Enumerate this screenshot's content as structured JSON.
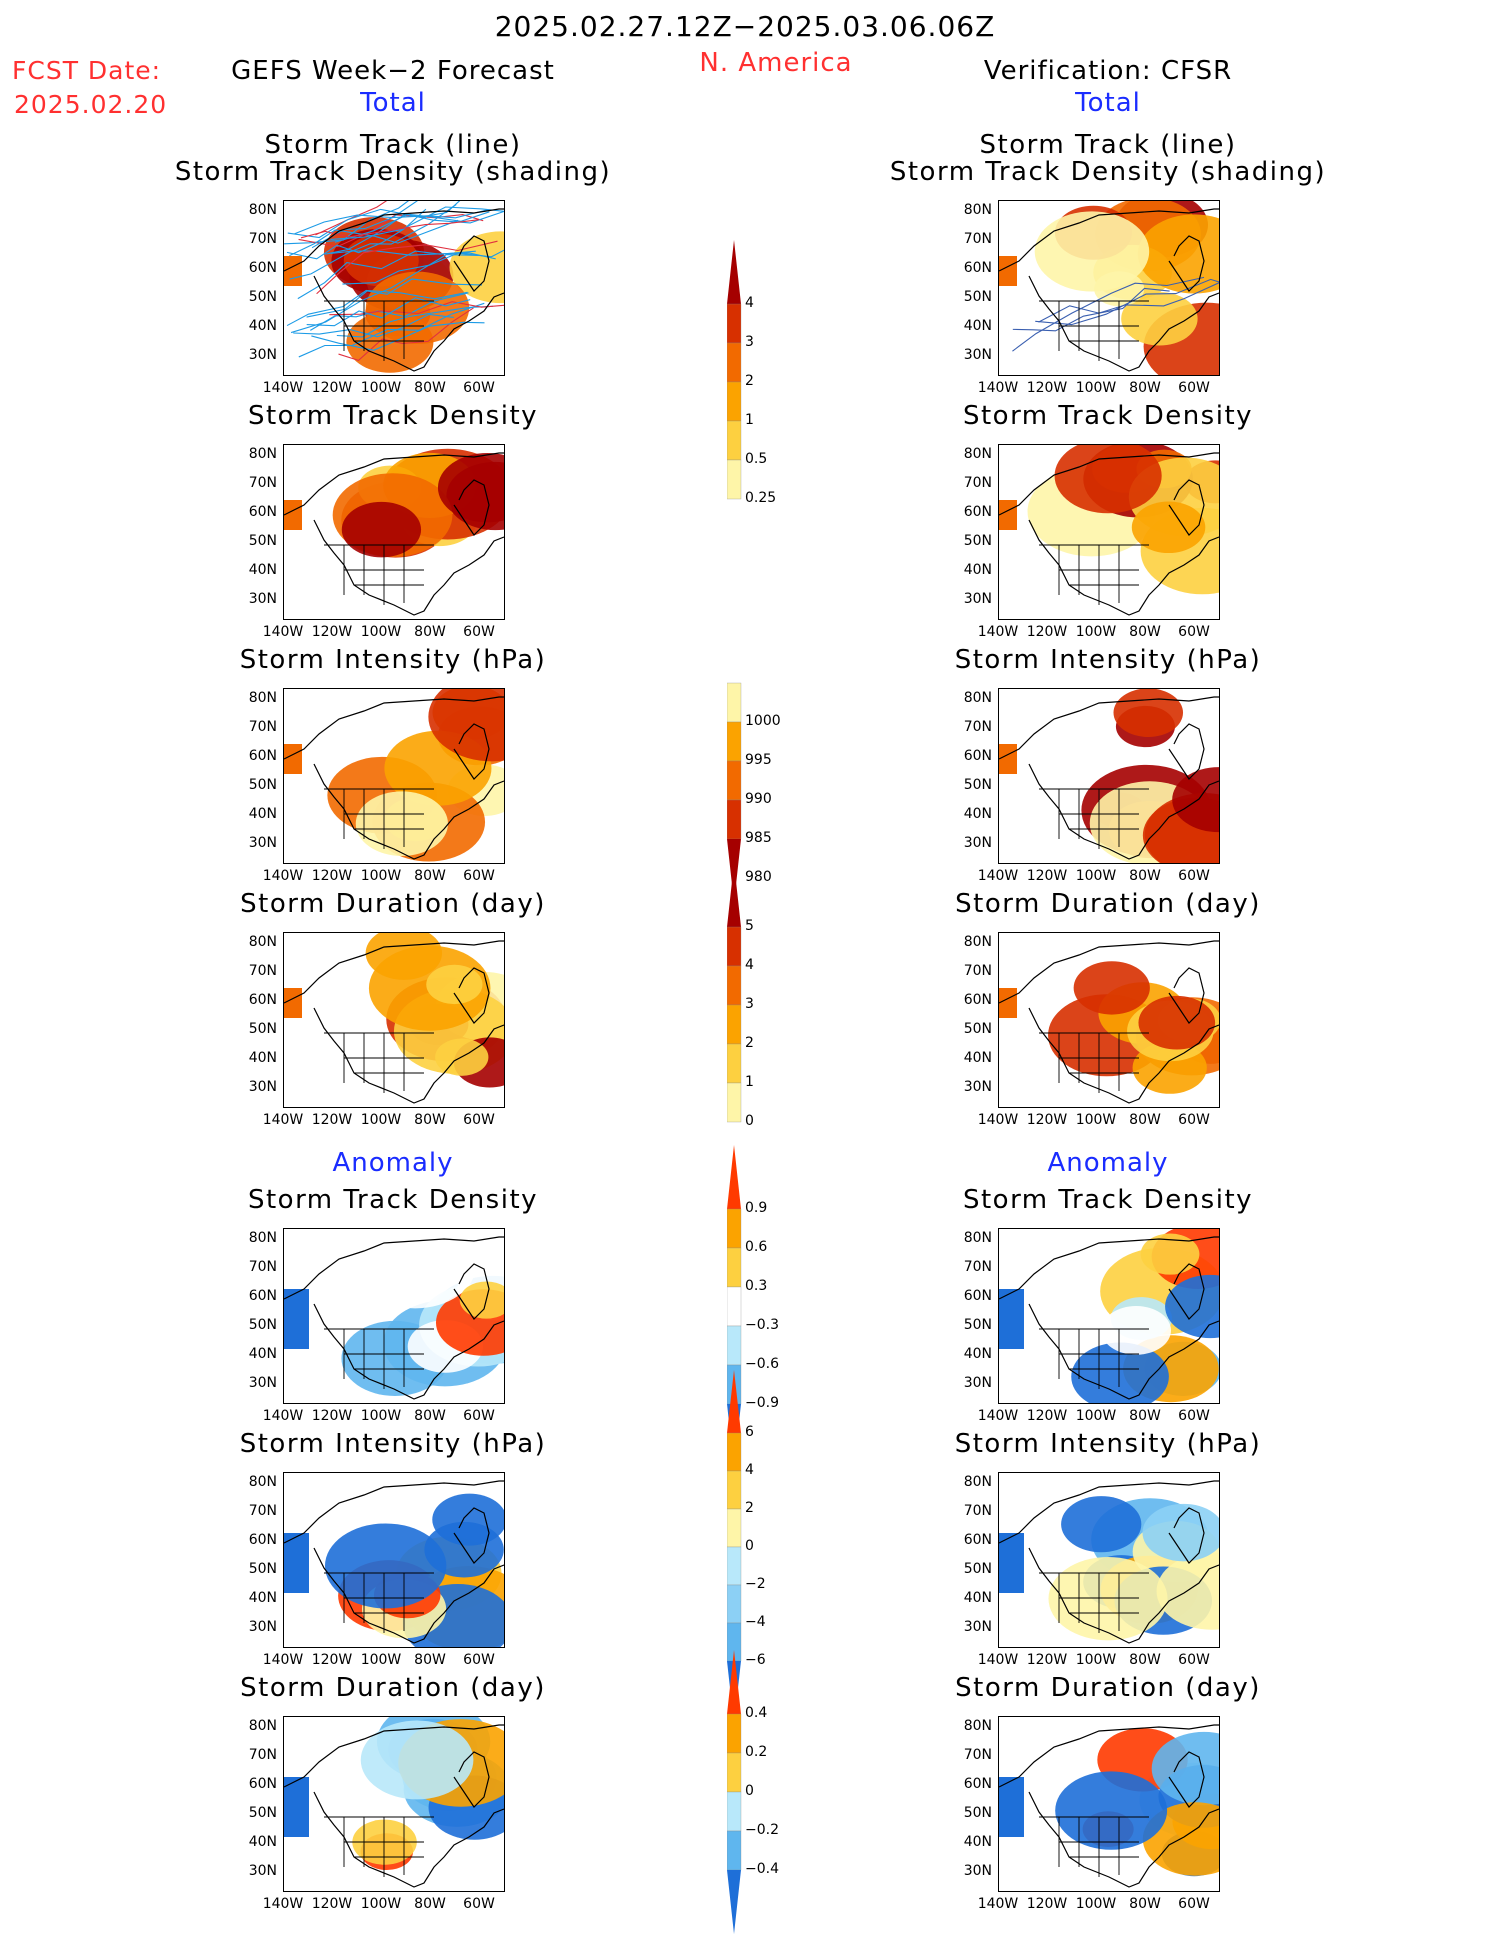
{
  "header": {
    "date_range": "2025.02.27.12Z−2025.03.06.06Z",
    "region": "N. America",
    "fcst_label": "FCST Date:",
    "fcst_date": "2025.02.20",
    "left_title": "GEFS Week−2 Forecast",
    "right_title": "Verification: CFSR",
    "total_label": "Total",
    "anomaly_label": "Anomaly"
  },
  "panel_titles": {
    "track_line": "Storm Track (line)",
    "track_shading": "Storm Track Density (shading)",
    "density": "Storm Track Density",
    "intensity": "Storm Intensity (hPa)",
    "duration": "Storm Duration (day)"
  },
  "axes": {
    "lat_labels": [
      "80N",
      "70N",
      "60N",
      "50N",
      "40N",
      "30N"
    ],
    "lon_labels": [
      "140W",
      "120W",
      "100W",
      "80W",
      "60W"
    ]
  },
  "colorbars": {
    "density_total": {
      "labels": [
        "4",
        "3",
        "2",
        "1",
        "0.5",
        "0.25"
      ],
      "colors": [
        "#a50000",
        "#d73000",
        "#f26a00",
        "#fba300",
        "#fdd040",
        "#fef5a8"
      ]
    },
    "intensity_total": {
      "labels": [
        "1000",
        "995",
        "990",
        "985",
        "980"
      ],
      "colors": [
        "#fef5a8",
        "#fba300",
        "#f26a00",
        "#d73000",
        "#a50000"
      ]
    },
    "duration_total": {
      "labels": [
        "5",
        "4",
        "3",
        "2",
        "1",
        "0"
      ],
      "colors": [
        "#a50000",
        "#d73000",
        "#f26a00",
        "#fba300",
        "#fdd040",
        "#fef5a8"
      ]
    },
    "density_anom": {
      "labels": [
        "0.9",
        "0.6",
        "0.3",
        "−0.3",
        "−0.6",
        "−0.9"
      ],
      "colors": [
        "#ff3a00",
        "#fba300",
        "#fdd040",
        "#ffffff",
        "#b8e8fa",
        "#5fb6ee",
        "#1e6fd8"
      ]
    },
    "intensity_anom": {
      "labels": [
        "6",
        "4",
        "2",
        "0",
        "−2",
        "−4",
        "−6"
      ],
      "colors": [
        "#ff3a00",
        "#fba300",
        "#fdd040",
        "#fef5a8",
        "#b8e8fa",
        "#8cd0f5",
        "#5fb6ee",
        "#1e6fd8"
      ]
    },
    "duration_anom": {
      "labels": [
        "0.4",
        "0.2",
        "0",
        "−0.2",
        "−0.4"
      ],
      "colors": [
        "#ff3a00",
        "#fba300",
        "#fdd040",
        "#b8e8fa",
        "#5fb6ee",
        "#1e6fd8"
      ]
    }
  },
  "colors": {
    "header_red": "#ff3030",
    "label_blue": "#1a2cff",
    "track_blue": "#1c9be6",
    "track_red": "#e03040"
  }
}
